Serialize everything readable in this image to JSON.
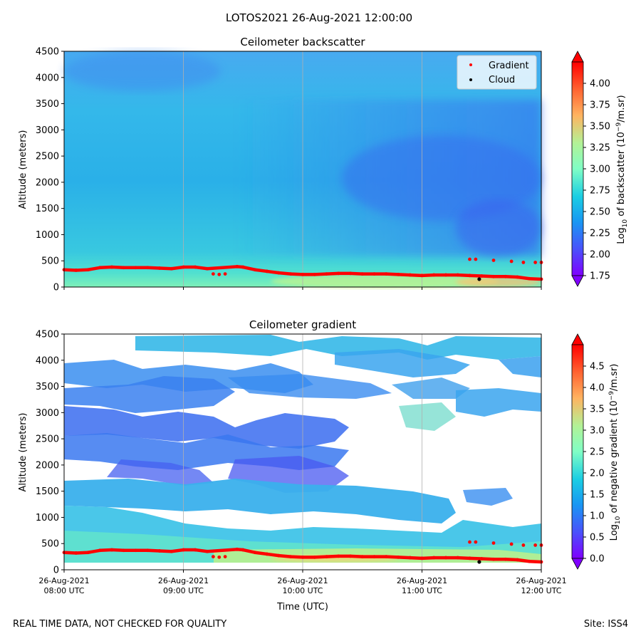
{
  "figure": {
    "suptitle": "LOTOS2021 26-Aug-2021 12:00:00",
    "footer_left": "REAL TIME DATA, NOT CHECKED FOR QUALITY",
    "footer_right": "Site: ISS4"
  },
  "chart_data": [
    {
      "type": "heatmap",
      "title": "Ceilometer backscatter",
      "ylabel": "Altitude (meters)",
      "xlabel": "",
      "xlim": [
        0,
        4
      ],
      "ylim": [
        0,
        4500
      ],
      "yticks": [
        0,
        500,
        1000,
        1500,
        2000,
        2500,
        3000,
        3500,
        4000,
        4500
      ],
      "xticks": [
        0,
        1,
        2,
        3,
        4
      ],
      "xtick_labels": [],
      "grid": "vertical",
      "legend": {
        "placement": "top-right",
        "entries": [
          {
            "label": "Gradient",
            "color": "#ff0000"
          },
          {
            "label": "Cloud",
            "color": "#000000"
          }
        ]
      },
      "colorbar": {
        "label_prefix": "Log",
        "label_sub": "10",
        "label_main": " of backscatter (10",
        "label_sup": "−9",
        "label_end": "/m.sr)",
        "range": [
          1.75,
          4.25
        ],
        "ticks": [
          "1.75",
          "2.00",
          "2.25",
          "2.50",
          "2.75",
          "3.00",
          "3.25",
          "3.50",
          "3.75",
          "4.00"
        ],
        "tick_values": [
          1.75,
          2.0,
          2.25,
          2.5,
          2.75,
          3.0,
          3.25,
          3.5,
          3.75,
          4.0
        ],
        "colormap": "rainbow"
      },
      "series": [
        {
          "name": "Gradient",
          "color": "#ff0000",
          "points": [
            [
              0.0,
              330
            ],
            [
              0.1,
              320
            ],
            [
              0.2,
              330
            ],
            [
              0.3,
              370
            ],
            [
              0.4,
              380
            ],
            [
              0.5,
              370
            ],
            [
              0.6,
              370
            ],
            [
              0.7,
              370
            ],
            [
              0.8,
              360
            ],
            [
              0.9,
              350
            ],
            [
              1.0,
              380
            ],
            [
              1.1,
              380
            ],
            [
              1.2,
              350
            ],
            [
              1.45,
              390
            ],
            [
              1.5,
              380
            ],
            [
              1.6,
              330
            ],
            [
              1.7,
              300
            ],
            [
              1.8,
              270
            ],
            [
              1.9,
              250
            ],
            [
              2.0,
              240
            ],
            [
              2.1,
              240
            ],
            [
              2.2,
              250
            ],
            [
              2.3,
              260
            ],
            [
              2.4,
              260
            ],
            [
              2.5,
              250
            ],
            [
              2.6,
              250
            ],
            [
              2.7,
              250
            ],
            [
              2.8,
              240
            ],
            [
              2.9,
              230
            ],
            [
              3.0,
              220
            ],
            [
              3.1,
              230
            ],
            [
              3.2,
              230
            ],
            [
              3.3,
              230
            ],
            [
              3.4,
              220
            ],
            [
              3.5,
              210
            ],
            [
              3.6,
              200
            ],
            [
              3.7,
              200
            ],
            [
              3.8,
              190
            ],
            [
              3.9,
              160
            ],
            [
              4.0,
              150
            ]
          ],
          "extra_points": [
            [
              1.25,
              250
            ],
            [
              1.3,
              240
            ],
            [
              1.35,
              250
            ],
            [
              3.4,
              530
            ],
            [
              3.45,
              530
            ],
            [
              3.6,
              510
            ],
            [
              3.75,
              490
            ],
            [
              3.85,
              470
            ],
            [
              3.95,
              470
            ],
            [
              4.0,
              470
            ]
          ]
        },
        {
          "name": "Cloud",
          "color": "#000000",
          "points": [
            [
              3.48,
              150
            ]
          ]
        }
      ]
    },
    {
      "type": "heatmap",
      "title": "Ceilometer gradient",
      "ylabel": "Altitude (meters)",
      "xlabel": "Time (UTC)",
      "xlim": [
        0,
        4
      ],
      "ylim": [
        0,
        4500
      ],
      "yticks": [
        0,
        500,
        1000,
        1500,
        2000,
        2500,
        3000,
        3500,
        4000,
        4500
      ],
      "xticks": [
        0,
        1,
        2,
        3,
        4
      ],
      "xtick_labels": [
        [
          "26-Aug-2021",
          "08:00 UTC"
        ],
        [
          "26-Aug-2021",
          "09:00 UTC"
        ],
        [
          "26-Aug-2021",
          "10:00 UTC"
        ],
        [
          "26-Aug-2021",
          "11:00 UTC"
        ],
        [
          "26-Aug-2021",
          "12:00 UTC"
        ]
      ],
      "grid": "vertical",
      "colorbar": {
        "label_prefix": "Log",
        "label_sub": "10",
        "label_main": " of negative gradient (10",
        "label_sup": "−9",
        "label_end": "/m.sr)",
        "range": [
          0.0,
          5.0
        ],
        "ticks": [
          "0.0",
          "0.5",
          "1.0",
          "1.5",
          "2.0",
          "2.5",
          "3.0",
          "3.5",
          "4.0",
          "4.5"
        ],
        "tick_values": [
          0.0,
          0.5,
          1.0,
          1.5,
          2.0,
          2.5,
          3.0,
          3.5,
          4.0,
          4.5
        ],
        "colormap": "rainbow"
      },
      "series": [
        {
          "name": "Gradient",
          "color": "#ff0000",
          "points": [
            [
              0.0,
              330
            ],
            [
              0.1,
              320
            ],
            [
              0.2,
              330
            ],
            [
              0.3,
              370
            ],
            [
              0.4,
              380
            ],
            [
              0.5,
              370
            ],
            [
              0.6,
              370
            ],
            [
              0.7,
              370
            ],
            [
              0.8,
              360
            ],
            [
              0.9,
              350
            ],
            [
              1.0,
              380
            ],
            [
              1.1,
              380
            ],
            [
              1.2,
              350
            ],
            [
              1.45,
              390
            ],
            [
              1.5,
              380
            ],
            [
              1.6,
              330
            ],
            [
              1.7,
              300
            ],
            [
              1.8,
              270
            ],
            [
              1.9,
              250
            ],
            [
              2.0,
              240
            ],
            [
              2.1,
              240
            ],
            [
              2.2,
              250
            ],
            [
              2.3,
              260
            ],
            [
              2.4,
              260
            ],
            [
              2.5,
              250
            ],
            [
              2.6,
              250
            ],
            [
              2.7,
              250
            ],
            [
              2.8,
              240
            ],
            [
              2.9,
              230
            ],
            [
              3.0,
              220
            ],
            [
              3.1,
              230
            ],
            [
              3.2,
              230
            ],
            [
              3.3,
              230
            ],
            [
              3.4,
              220
            ],
            [
              3.5,
              210
            ],
            [
              3.6,
              200
            ],
            [
              3.7,
              200
            ],
            [
              3.8,
              190
            ],
            [
              3.9,
              160
            ],
            [
              4.0,
              150
            ]
          ],
          "extra_points": [
            [
              1.25,
              250
            ],
            [
              1.3,
              240
            ],
            [
              1.35,
              250
            ],
            [
              3.4,
              530
            ],
            [
              3.45,
              530
            ],
            [
              3.6,
              510
            ],
            [
              3.75,
              490
            ],
            [
              3.85,
              470
            ],
            [
              3.95,
              470
            ],
            [
              4.0,
              470
            ]
          ]
        },
        {
          "name": "Cloud",
          "color": "#000000",
          "points": [
            [
              3.48,
              150
            ]
          ]
        }
      ]
    }
  ]
}
